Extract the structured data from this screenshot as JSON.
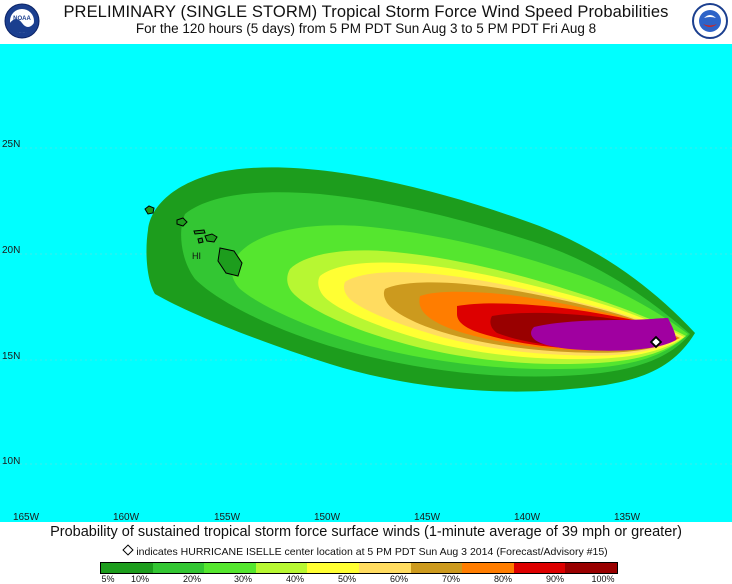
{
  "header": {
    "title": "PRELIMINARY (SINGLE STORM) Tropical Storm Force Wind Speed Probabilities",
    "subtitle": "For the 120 hours (5 days) from 5 PM PDT Sun Aug 3 to 5 PM PDT Fri Aug 8"
  },
  "logos": {
    "left_icon": "noaa-logo-icon",
    "right_icon": "nws-logo-icon"
  },
  "map": {
    "ocean_color": "#00ffff",
    "land_label": "HI",
    "lat_labels": [
      "25N",
      "20N",
      "15N",
      "10N"
    ],
    "lon_labels": [
      "165W",
      "160W",
      "155W",
      "150W",
      "145W",
      "140W",
      "135W"
    ],
    "storm_center": {
      "lon": -133.0,
      "lat": 15.9
    }
  },
  "captions": {
    "probability_note": "Probability of sustained tropical storm force surface winds (1-minute average of 39 mph or greater)",
    "center_note": "indicates HURRICANE ISELLE center location at 5 PM PDT Sun Aug 3 2014 (Forecast/Advisory #15)"
  },
  "legend": {
    "labels": [
      "5%",
      "10%",
      "20%",
      "30%",
      "40%",
      "50%",
      "60%",
      "70%",
      "80%",
      "90%",
      "100%"
    ],
    "colors": [
      "#1d9d1d",
      "#33c633",
      "#55e62f",
      "#b7f732",
      "#ffff33",
      "#ffdc60",
      "#cc9a1e",
      "#ff7d00",
      "#dd0000",
      "#990000",
      "#a000a0"
    ]
  }
}
